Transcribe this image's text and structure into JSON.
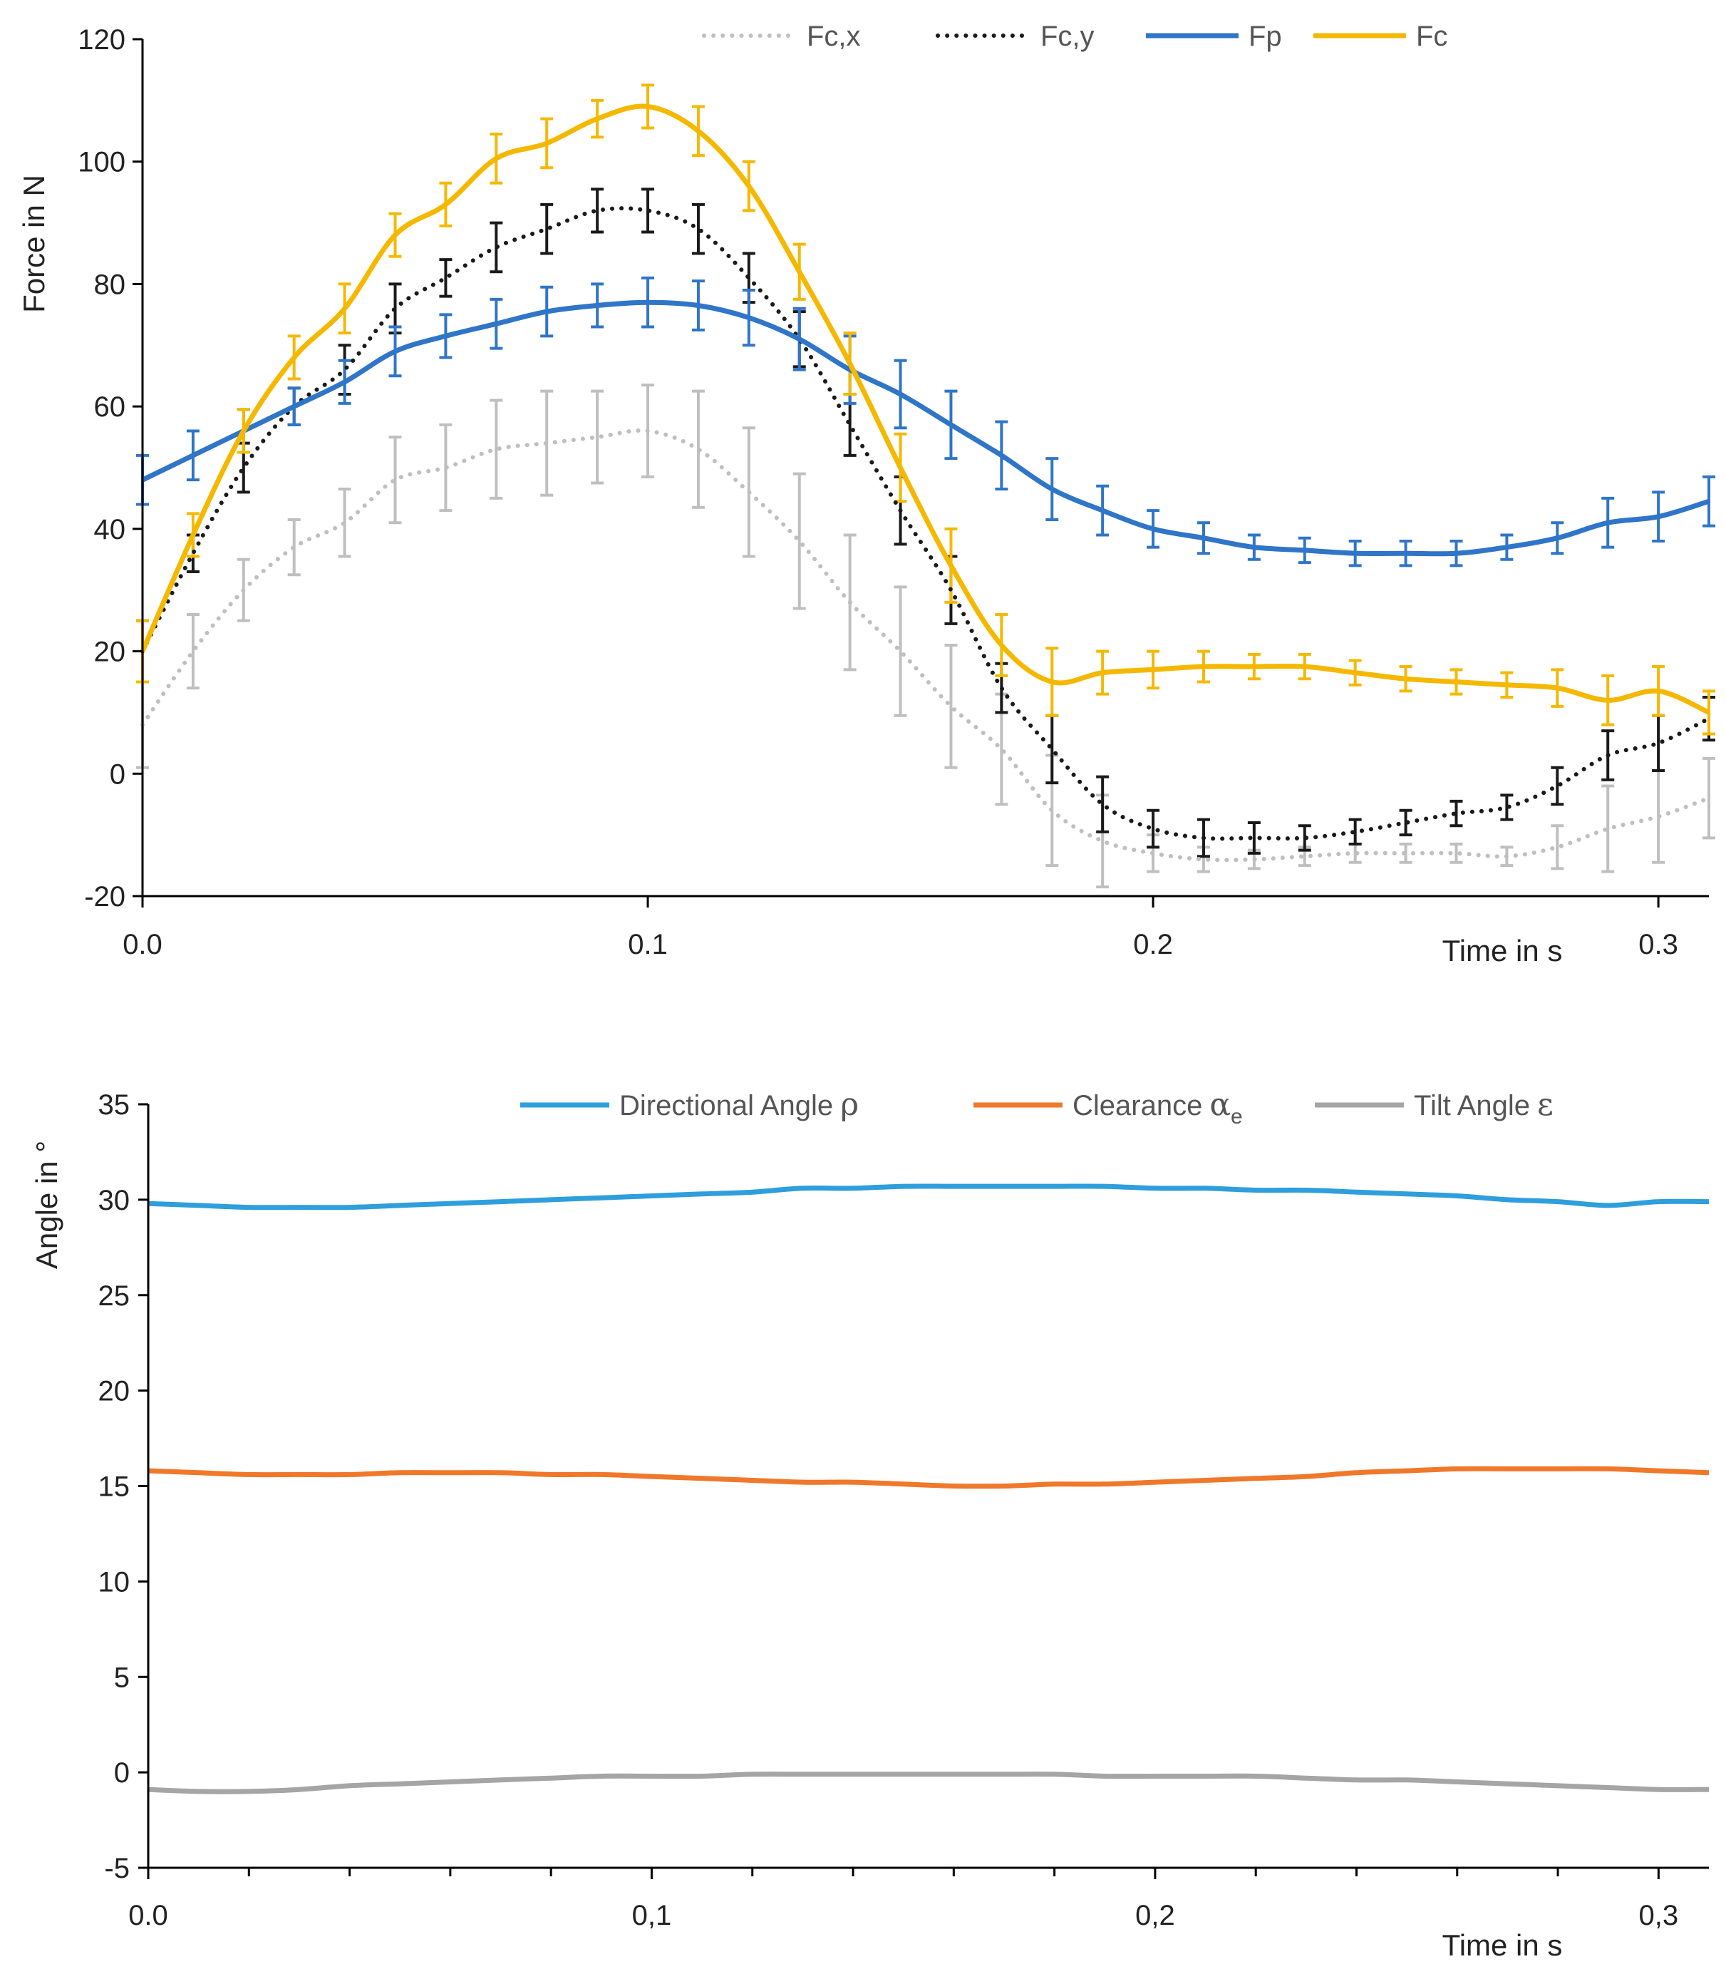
{
  "chart_data": [
    {
      "type": "line",
      "title": "",
      "xlabel": "Time in s",
      "ylabel": "Force in N",
      "xlim": [
        0,
        0.31
      ],
      "ylim": [
        -20,
        120
      ],
      "yticks": [
        120,
        100,
        80,
        60,
        40,
        20,
        0,
        -20
      ],
      "xtick_labels": [
        "0.0",
        "0.1",
        "0.2",
        "0.3"
      ],
      "xtick_values": [
        0,
        0.1,
        0.2,
        0.3
      ],
      "x": [
        0,
        0.01,
        0.02,
        0.03,
        0.04,
        0.05,
        0.06,
        0.07,
        0.08,
        0.09,
        0.1,
        0.11,
        0.12,
        0.13,
        0.14,
        0.15,
        0.16,
        0.17,
        0.18,
        0.19,
        0.2,
        0.21,
        0.22,
        0.23,
        0.24,
        0.25,
        0.26,
        0.27,
        0.28,
        0.29,
        0.3,
        0.31
      ],
      "legend_position": "top",
      "series": [
        {
          "name": "Fc,x",
          "color": "#bfbfbf",
          "style": "dotted",
          "values": [
            8,
            20,
            30,
            37,
            41,
            48,
            50,
            53,
            54,
            55,
            56,
            53,
            46,
            38,
            28,
            20,
            11,
            4,
            -6,
            -11,
            -13,
            -14,
            -14,
            -13.5,
            -13,
            -13,
            -13,
            -13.5,
            -12,
            -9,
            -7,
            -4
          ],
          "errors": [
            7,
            6,
            5,
            4.5,
            5.5,
            7,
            7,
            8,
            8.5,
            7.5,
            7.5,
            9.5,
            10.5,
            11,
            11,
            10.5,
            10,
            9,
            9,
            7.5,
            3,
            2,
            1.5,
            1.5,
            1.5,
            1.5,
            1.5,
            1.5,
            3.5,
            7,
            7.5,
            6.5
          ]
        },
        {
          "name": "Fc,y",
          "color": "#1a1a1a",
          "style": "dotted",
          "values": [
            20,
            36,
            50,
            60,
            66,
            76,
            81,
            86,
            89,
            92,
            92,
            89,
            81,
            71,
            57,
            43,
            30,
            14,
            4,
            -5,
            -9,
            -10.5,
            -10.5,
            -10.5,
            -9.5,
            -8,
            -6.5,
            -5.5,
            -2,
            3,
            5,
            9
          ],
          "errors": [
            5,
            3,
            4,
            3,
            4,
            4,
            3,
            4,
            4,
            3.5,
            3.5,
            4,
            4,
            4.5,
            5,
            5.5,
            5.5,
            4,
            5.5,
            4.5,
            3,
            3,
            2.5,
            2,
            2,
            2,
            2,
            2,
            3,
            4,
            4.5,
            3.5
          ]
        },
        {
          "name": "Fp",
          "color": "#2f75c8",
          "style": "solid",
          "values": [
            48,
            52,
            56,
            60,
            64,
            69,
            71.5,
            73.5,
            75.5,
            76.5,
            77,
            76.5,
            74.5,
            71,
            66,
            62,
            57,
            52,
            46.5,
            43,
            40,
            38.5,
            37,
            36.5,
            36,
            36,
            36,
            37,
            38.5,
            41,
            42,
            44.5
          ],
          "errors": [
            4,
            4,
            3.5,
            3,
            3.5,
            4,
            3.5,
            4,
            4,
            3.5,
            4,
            4,
            4.5,
            5,
            5.5,
            5.5,
            5.5,
            5.5,
            5,
            4,
            3,
            2.5,
            2,
            2,
            2,
            2,
            2,
            2,
            2.5,
            4,
            4,
            4
          ]
        },
        {
          "name": "Fc",
          "color": "#f5b800",
          "style": "solid",
          "values": [
            20,
            39,
            56,
            68,
            76,
            88,
            93,
            100.5,
            103,
            107,
            109,
            105,
            96,
            82,
            67,
            50,
            34,
            21,
            15,
            16.5,
            17,
            17.5,
            17.5,
            17.5,
            16.5,
            15.5,
            15,
            14.5,
            14,
            12,
            13.5,
            10
          ],
          "errors": [
            5,
            3.5,
            3.5,
            3.5,
            4,
            3.5,
            3.5,
            4,
            4,
            3,
            3.5,
            4,
            4,
            4.5,
            5,
            5.5,
            6,
            5,
            5.5,
            3.5,
            3,
            2.5,
            2,
            2,
            2,
            2,
            2,
            2,
            3,
            4,
            4,
            3.5
          ]
        }
      ]
    },
    {
      "type": "line",
      "title": "",
      "xlabel": "Time in s",
      "ylabel": "Angle in °",
      "xlim": [
        0,
        0.31
      ],
      "ylim": [
        -5,
        35
      ],
      "yticks": [
        35,
        30,
        25,
        20,
        15,
        10,
        5,
        0,
        -5
      ],
      "xtick_labels": [
        "0.0",
        "0,1",
        "0,2",
        "0,3"
      ],
      "xtick_values": [
        0,
        0.1,
        0.2,
        0.3
      ],
      "x": [
        0,
        0.01,
        0.02,
        0.03,
        0.04,
        0.05,
        0.06,
        0.07,
        0.08,
        0.09,
        0.1,
        0.11,
        0.12,
        0.13,
        0.14,
        0.15,
        0.16,
        0.17,
        0.18,
        0.19,
        0.2,
        0.21,
        0.22,
        0.23,
        0.24,
        0.25,
        0.26,
        0.27,
        0.28,
        0.29,
        0.3,
        0.31
      ],
      "legend_position": "top",
      "series": [
        {
          "name": "Directional Angle",
          "symbol": "ρ",
          "color": "#2e9fdc",
          "values": [
            29.8,
            29.7,
            29.6,
            29.6,
            29.6,
            29.7,
            29.8,
            29.9,
            30.0,
            30.1,
            30.2,
            30.3,
            30.4,
            30.6,
            30.6,
            30.7,
            30.7,
            30.7,
            30.7,
            30.7,
            30.6,
            30.6,
            30.5,
            30.5,
            30.4,
            30.3,
            30.2,
            30.0,
            29.9,
            29.7,
            29.9,
            29.9
          ]
        },
        {
          "name": "Clearance",
          "symbol": "α",
          "subscript": "e",
          "color": "#f0782a",
          "values": [
            15.8,
            15.7,
            15.6,
            15.6,
            15.6,
            15.7,
            15.7,
            15.7,
            15.6,
            15.6,
            15.5,
            15.4,
            15.3,
            15.2,
            15.2,
            15.1,
            15.0,
            15.0,
            15.1,
            15.1,
            15.2,
            15.3,
            15.4,
            15.5,
            15.7,
            15.8,
            15.9,
            15.9,
            15.9,
            15.9,
            15.8,
            15.7
          ]
        },
        {
          "name": "Tilt Angle",
          "symbol": "ε",
          "color": "#a5a5a5",
          "values": [
            -0.9,
            -1.0,
            -1.0,
            -0.9,
            -0.7,
            -0.6,
            -0.5,
            -0.4,
            -0.3,
            -0.2,
            -0.2,
            -0.2,
            -0.1,
            -0.1,
            -0.1,
            -0.1,
            -0.1,
            -0.1,
            -0.1,
            -0.2,
            -0.2,
            -0.2,
            -0.2,
            -0.3,
            -0.4,
            -0.4,
            -0.5,
            -0.6,
            -0.7,
            -0.8,
            -0.9,
            -0.9
          ]
        }
      ]
    }
  ]
}
